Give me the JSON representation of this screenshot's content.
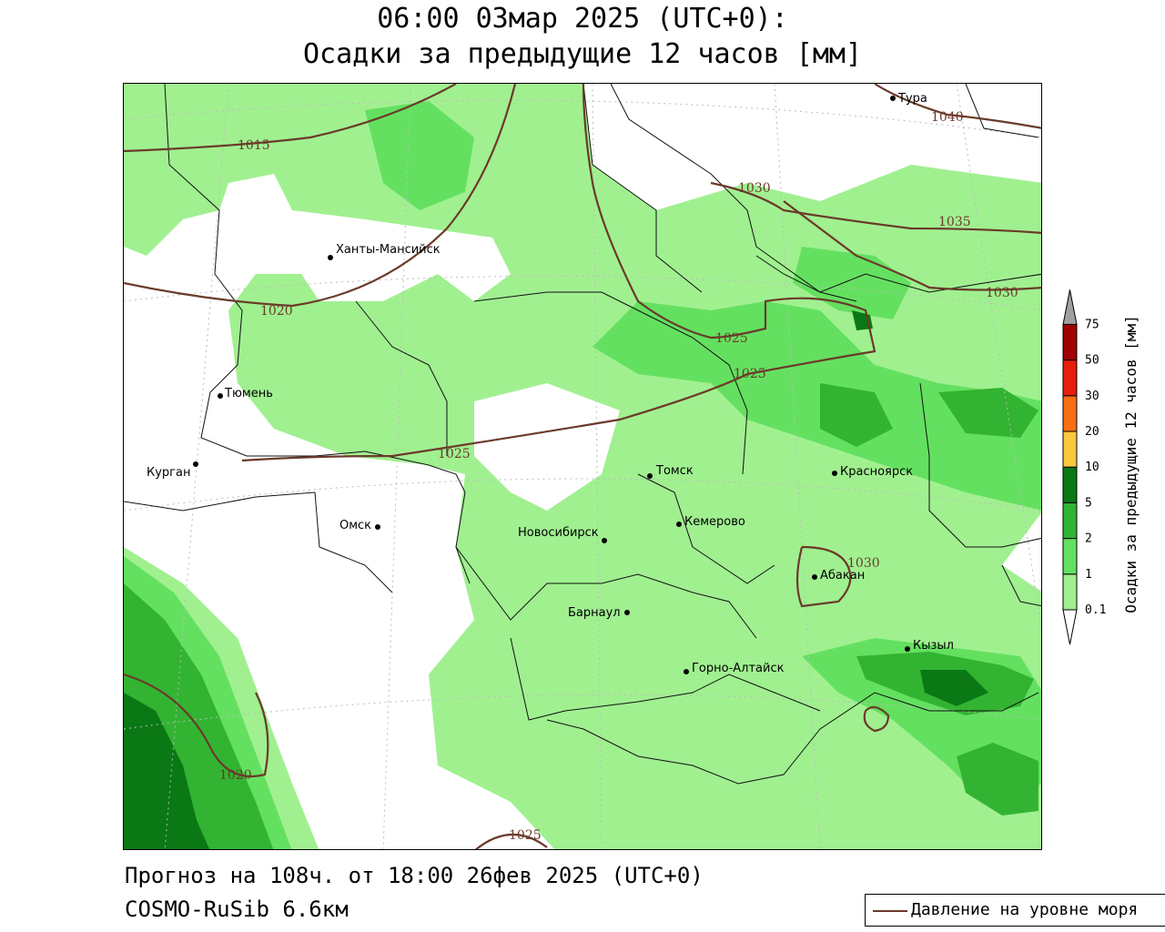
{
  "title": {
    "line1": "06:00 03мар 2025 (UTC+0):",
    "line2": "Осадки за предыдущие 12 часов [мм]"
  },
  "cities": [
    {
      "name": "Тура"
    },
    {
      "name": "Ханты-Мансийск"
    },
    {
      "name": "Тюмень"
    },
    {
      "name": "Курган"
    },
    {
      "name": "Омск"
    },
    {
      "name": "Новосибирск"
    },
    {
      "name": "Томск"
    },
    {
      "name": "Кемерово"
    },
    {
      "name": "Красноярск"
    },
    {
      "name": "Абакан"
    },
    {
      "name": "Барнаул"
    },
    {
      "name": "Горно-Алтайск"
    },
    {
      "name": "Кызыл"
    }
  ],
  "isobar_labels": [
    "1015",
    "1020",
    "1025",
    "1025",
    "1025",
    "1030",
    "1030",
    "1030",
    "1035",
    "1040",
    "1020",
    "1025"
  ],
  "colorbar": {
    "title": "Осадки за предыдущие 12 часов [мм]",
    "levels": [
      "0.1",
      "1",
      "2",
      "5",
      "10",
      "20",
      "30",
      "50",
      "75"
    ],
    "colors": [
      "#ffffff",
      "#a0f090",
      "#64e060",
      "#32b432",
      "#0a7814",
      "#fac83c",
      "#fa6e14",
      "#e61e0a",
      "#a00000",
      "#a0a0a0"
    ]
  },
  "footer": {
    "forecast": "Прогноз на 108ч. от 18:00 26фев 2025 (UTC+0)",
    "model": "COSMO-RuSib 6.6км"
  },
  "legend": {
    "label": "Давление на уровне моря"
  }
}
